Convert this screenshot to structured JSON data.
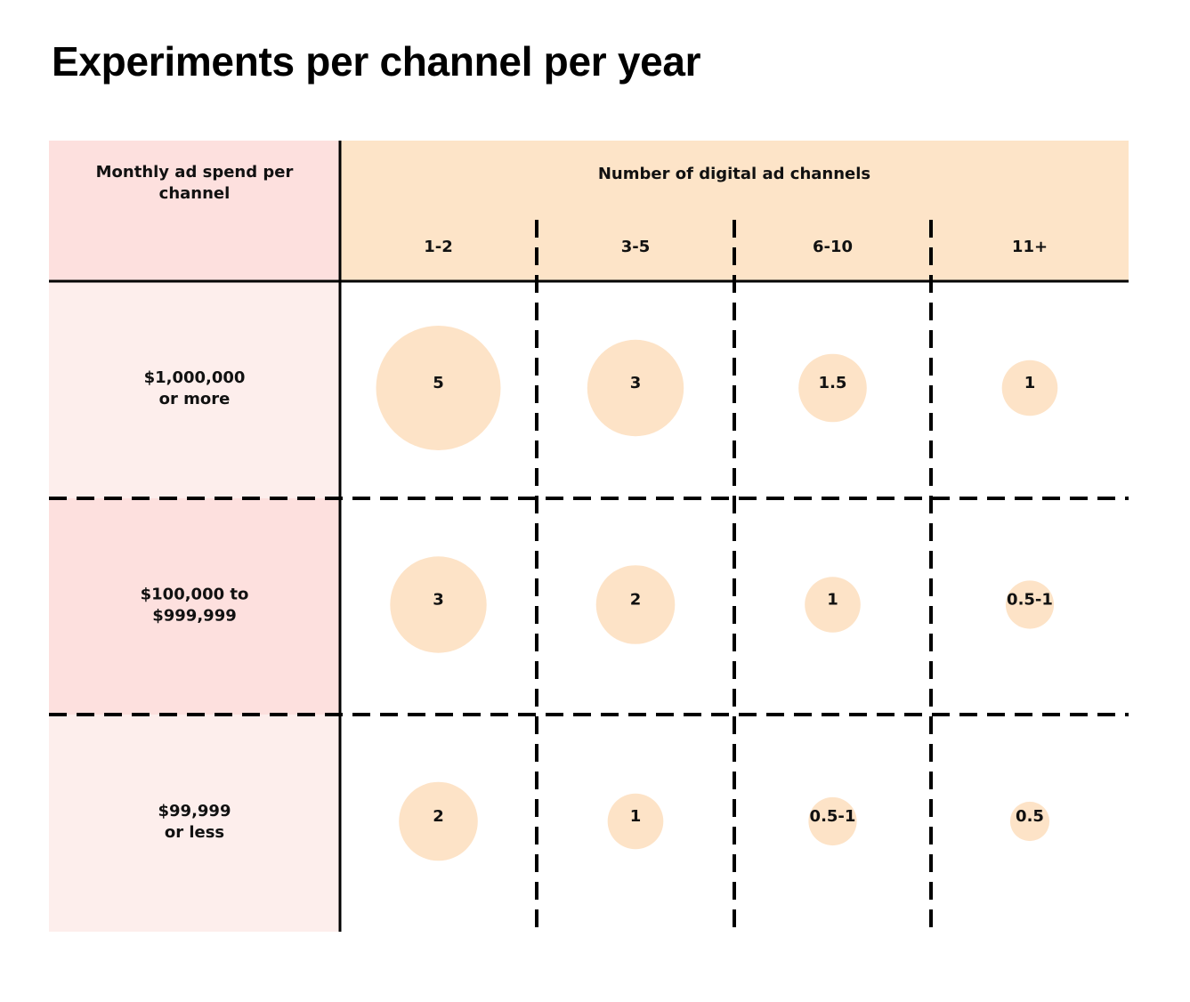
{
  "title": "Experiments per channel per year",
  "chart_data": {
    "type": "table",
    "title": "Experiments per channel per year",
    "row_header": [
      "Monthly ad spend per",
      "channel"
    ],
    "column_header": "Number of digital ad channels",
    "columns": [
      "1-2",
      "3-5",
      "6-10",
      "11+"
    ],
    "rows": [
      {
        "label": [
          "$1,000,000",
          "or more"
        ],
        "values": [
          "5",
          "3",
          "1.5",
          "1"
        ]
      },
      {
        "label": [
          "$100,000 to",
          "$999,999"
        ],
        "values": [
          "3",
          "2",
          "1",
          "0.5-1"
        ]
      },
      {
        "label": [
          "$99,999",
          "or less"
        ],
        "values": [
          "2",
          "1",
          "0.5-1",
          "0.5"
        ]
      }
    ],
    "bubble_sizes": [
      [
        5,
        3,
        1.5,
        1
      ],
      [
        3,
        2,
        1,
        0.75
      ],
      [
        2,
        1,
        0.75,
        0.5
      ]
    ],
    "colors": {
      "row_header_bg": "#fde0de",
      "row_bg_light": "#fdeeec",
      "row_bg_mid": "#fde0de",
      "column_header_bg": "#fde4c8",
      "bubble": "#fde3c7",
      "lines": "#000000"
    }
  }
}
